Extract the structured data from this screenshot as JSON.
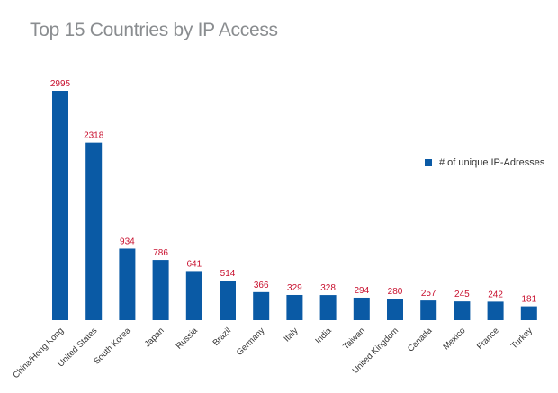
{
  "chart_data": {
    "type": "bar",
    "title": "Top 15 Countries by IP Access",
    "categories": [
      "China/Hong Kong",
      "United States",
      "South Korea",
      "Japan",
      "Russia",
      "Brazil",
      "Germany",
      "Italy",
      "India",
      "Taiwan",
      "United Kingdom",
      "Canada",
      "Mexico",
      "France",
      "Turkey"
    ],
    "series": [
      {
        "name": "# of unique IP-Adresses",
        "values": [
          2995,
          2318,
          934,
          786,
          641,
          514,
          366,
          329,
          328,
          294,
          280,
          257,
          245,
          242,
          181
        ]
      }
    ],
    "xlabel": "",
    "ylabel": "",
    "ylim": [
      0,
      2995
    ],
    "grid": false,
    "legend_position": "right",
    "colors": {
      "bar": "#0a5aa5",
      "data_label": "#c8102e",
      "title": "#8a8d90"
    }
  }
}
